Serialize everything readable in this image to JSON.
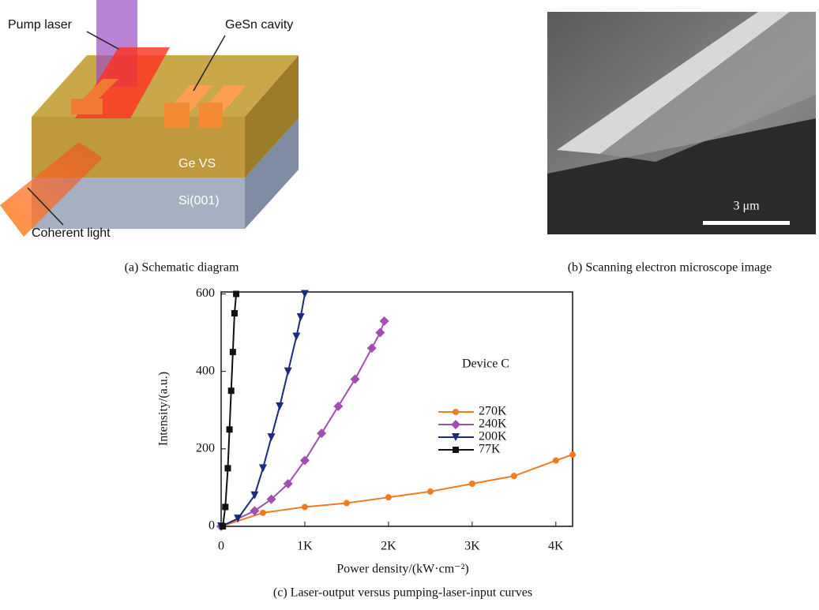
{
  "panel_a": {
    "pump_label": "Pump laser",
    "cavity_label": "GeSn cavity",
    "ge_label": "Ge VS",
    "si_label": "Si(001)",
    "light_label": "Coherent light",
    "caption": "(a) Schematic diagram"
  },
  "panel_b": {
    "scale_bar": "3 μm",
    "caption": "(b) Scanning electron microscope image"
  },
  "chart_data": {
    "type": "line",
    "caption": "(c) Laser-output versus pumping-laser-input curves",
    "x_label": "Power density/(kW·cm⁻²)",
    "y_label": "Intensity/(a.u.)",
    "annotation": "Device C",
    "xlim": [
      0,
      4200
    ],
    "ylim": [
      0,
      605
    ],
    "xticks": [
      0,
      {
        "value": 1000,
        "label": "1K"
      },
      {
        "value": 2000,
        "label": "2K"
      },
      {
        "value": 3000,
        "label": "3K"
      },
      {
        "value": 4000,
        "label": "4K"
      }
    ],
    "yticks": [
      0,
      200,
      400,
      600
    ],
    "legend": "right",
    "grid": false,
    "series": [
      {
        "name": "270K",
        "color": "#f47a20",
        "marker": "circle",
        "x": [
          0,
          500,
          1000,
          1500,
          2000,
          2500,
          3000,
          3500,
          4000,
          4200
        ],
        "values": [
          0,
          35,
          50,
          60,
          75,
          90,
          110,
          130,
          170,
          185
        ]
      },
      {
        "name": "240K",
        "color": "#a050b0",
        "marker": "diamond",
        "x": [
          0,
          400,
          600,
          800,
          1000,
          1200,
          1400,
          1600,
          1800,
          1900,
          1950
        ],
        "values": [
          0,
          40,
          70,
          110,
          170,
          240,
          310,
          380,
          460,
          500,
          530
        ]
      },
      {
        "name": "200K",
        "color": "#1c2a80",
        "marker": "triangle",
        "x": [
          0,
          200,
          400,
          500,
          600,
          700,
          800,
          900,
          950,
          1000
        ],
        "values": [
          0,
          20,
          80,
          150,
          230,
          310,
          400,
          490,
          540,
          600
        ]
      },
      {
        "name": "77K",
        "color": "#111111",
        "marker": "square",
        "x": [
          20,
          50,
          80,
          100,
          120,
          140,
          160,
          180
        ],
        "values": [
          0,
          50,
          150,
          250,
          350,
          450,
          550,
          600
        ]
      }
    ]
  }
}
